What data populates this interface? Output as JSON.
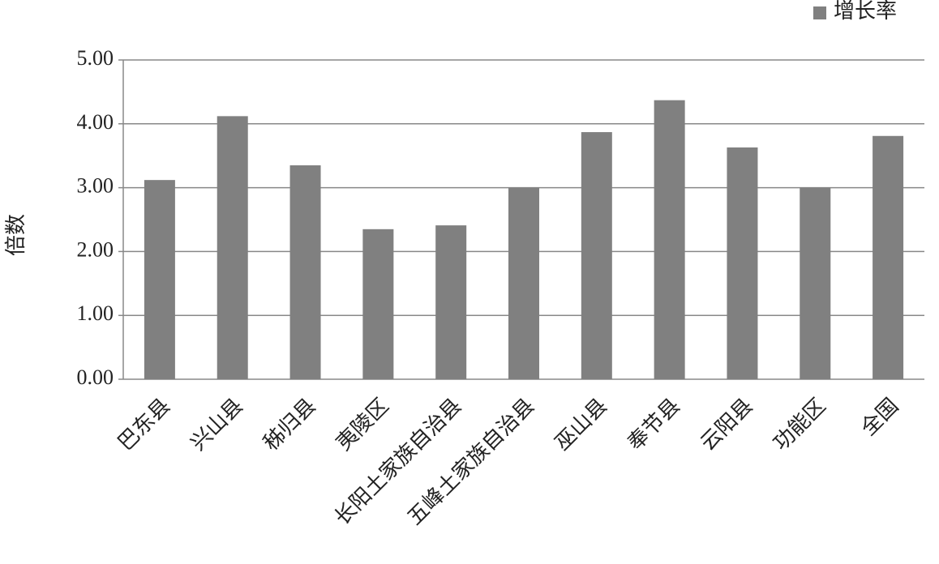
{
  "chart_data": {
    "type": "bar",
    "y_label": "倍数",
    "categories": [
      "巴东县",
      "兴山县",
      "秭归县",
      "夷陵区",
      "长阳土家族自治县",
      "五峰土家族自治县",
      "巫山县",
      "奉节县",
      "云阳县",
      "功能区",
      "全国"
    ],
    "series": [
      {
        "name": "增长率",
        "color": "#808080",
        "values": [
          3.12,
          4.12,
          3.35,
          2.35,
          2.41,
          3.0,
          3.87,
          4.37,
          3.63,
          3.0,
          3.81
        ]
      }
    ],
    "ylim": [
      0,
      5
    ],
    "yticks": [
      {
        "value": 0,
        "label": "0.00"
      },
      {
        "value": 1,
        "label": "1.00"
      },
      {
        "value": 2,
        "label": "2.00"
      },
      {
        "value": 3,
        "label": "3.00"
      },
      {
        "value": 4,
        "label": "4.00"
      },
      {
        "value": 5,
        "label": "5.00"
      }
    ],
    "grid": true,
    "legend": "top-right"
  }
}
